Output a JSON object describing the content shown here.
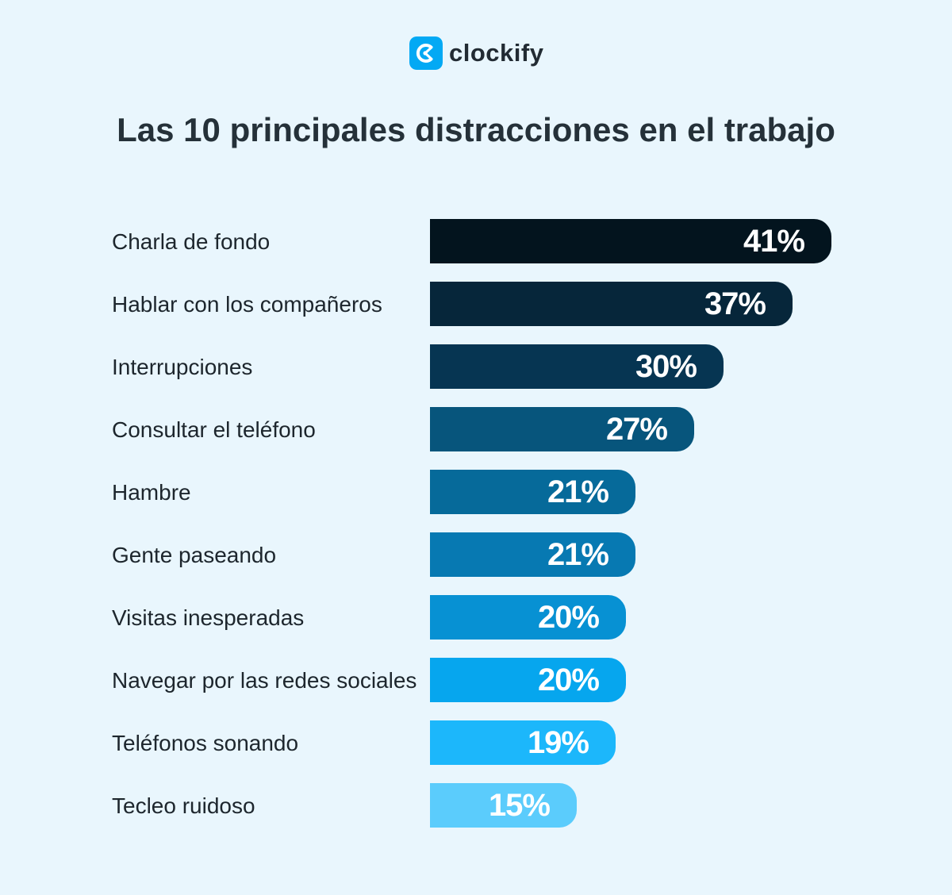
{
  "brand": {
    "name": "clockify",
    "icon": "clockify-logo-icon",
    "color": "#03a9f4"
  },
  "chart_data": {
    "type": "bar",
    "orientation": "horizontal",
    "title": "Las 10 principales distracciones en el trabajo",
    "categories": [
      "Charla de fondo",
      "Hablar con los compañeros",
      "Interrupciones",
      "Consultar el teléfono",
      "Hambre",
      "Gente paseando",
      "Visitas inesperadas",
      "Navegar por las redes sociales",
      "Teléfonos sonando",
      "Tecleo ruidoso"
    ],
    "values": [
      41,
      37,
      30,
      27,
      21,
      21,
      20,
      20,
      19,
      15
    ],
    "value_labels": [
      "41%",
      "37%",
      "30%",
      "27%",
      "21%",
      "21%",
      "20%",
      "20%",
      "19%",
      "15%"
    ],
    "unit": "%",
    "colors": [
      "#03141e",
      "#06263a",
      "#063552",
      "#07557c",
      "#066a9a",
      "#0779b2",
      "#0791d3",
      "#06a6ee",
      "#1cb7fb",
      "#5bccfc"
    ],
    "grid": false,
    "legend": "none"
  }
}
